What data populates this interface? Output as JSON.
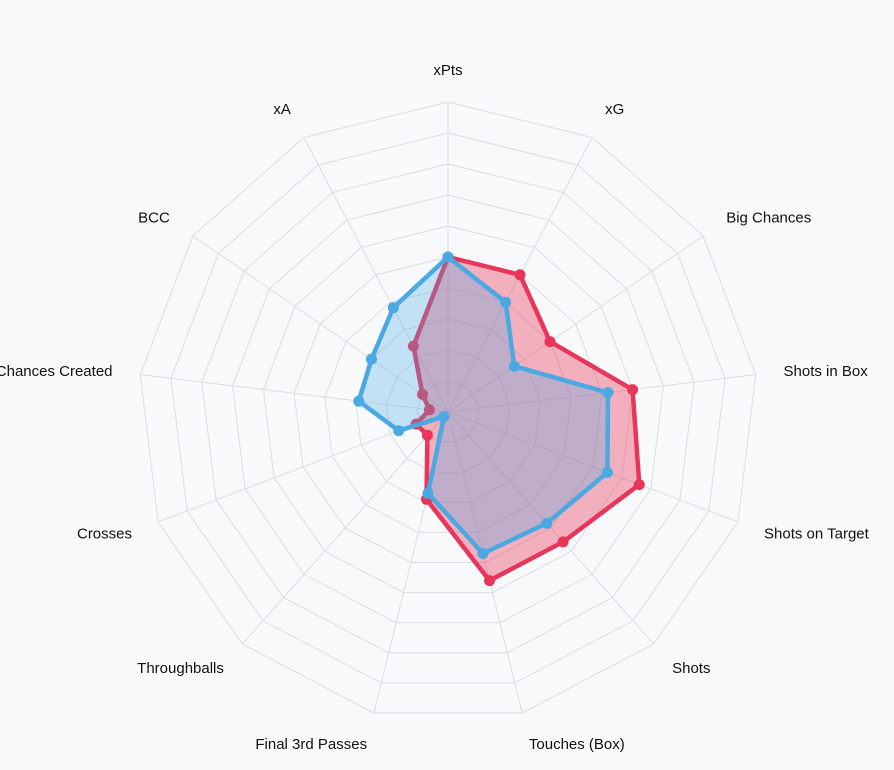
{
  "chart_data": {
    "type": "radar",
    "axes": [
      "xPts",
      "xG",
      "Big Chances",
      "Shots in Box",
      "Shots on Target",
      "Shots",
      "Touches (Box)",
      "Final 3rd Passes",
      "Throughballs",
      "Crosses",
      "Chances Created",
      "BCC",
      "xA"
    ],
    "range": [
      0,
      10
    ],
    "grid_levels": 10,
    "series": [
      {
        "values": [
          5.0,
          5.0,
          4.0,
          6.0,
          6.6,
          5.6,
          5.6,
          2.9,
          1.0,
          1.1,
          0.6,
          1.0,
          2.4
        ],
        "color": "#e8365a",
        "fill": "rgba(232,54,90,0.38)"
      },
      {
        "values": [
          5.0,
          4.0,
          2.6,
          5.2,
          5.5,
          4.8,
          4.7,
          2.7,
          0.2,
          1.7,
          2.9,
          3.0,
          3.8
        ],
        "color": "#4aa9e3",
        "fill": "rgba(74,169,227,0.30)"
      }
    ]
  }
}
